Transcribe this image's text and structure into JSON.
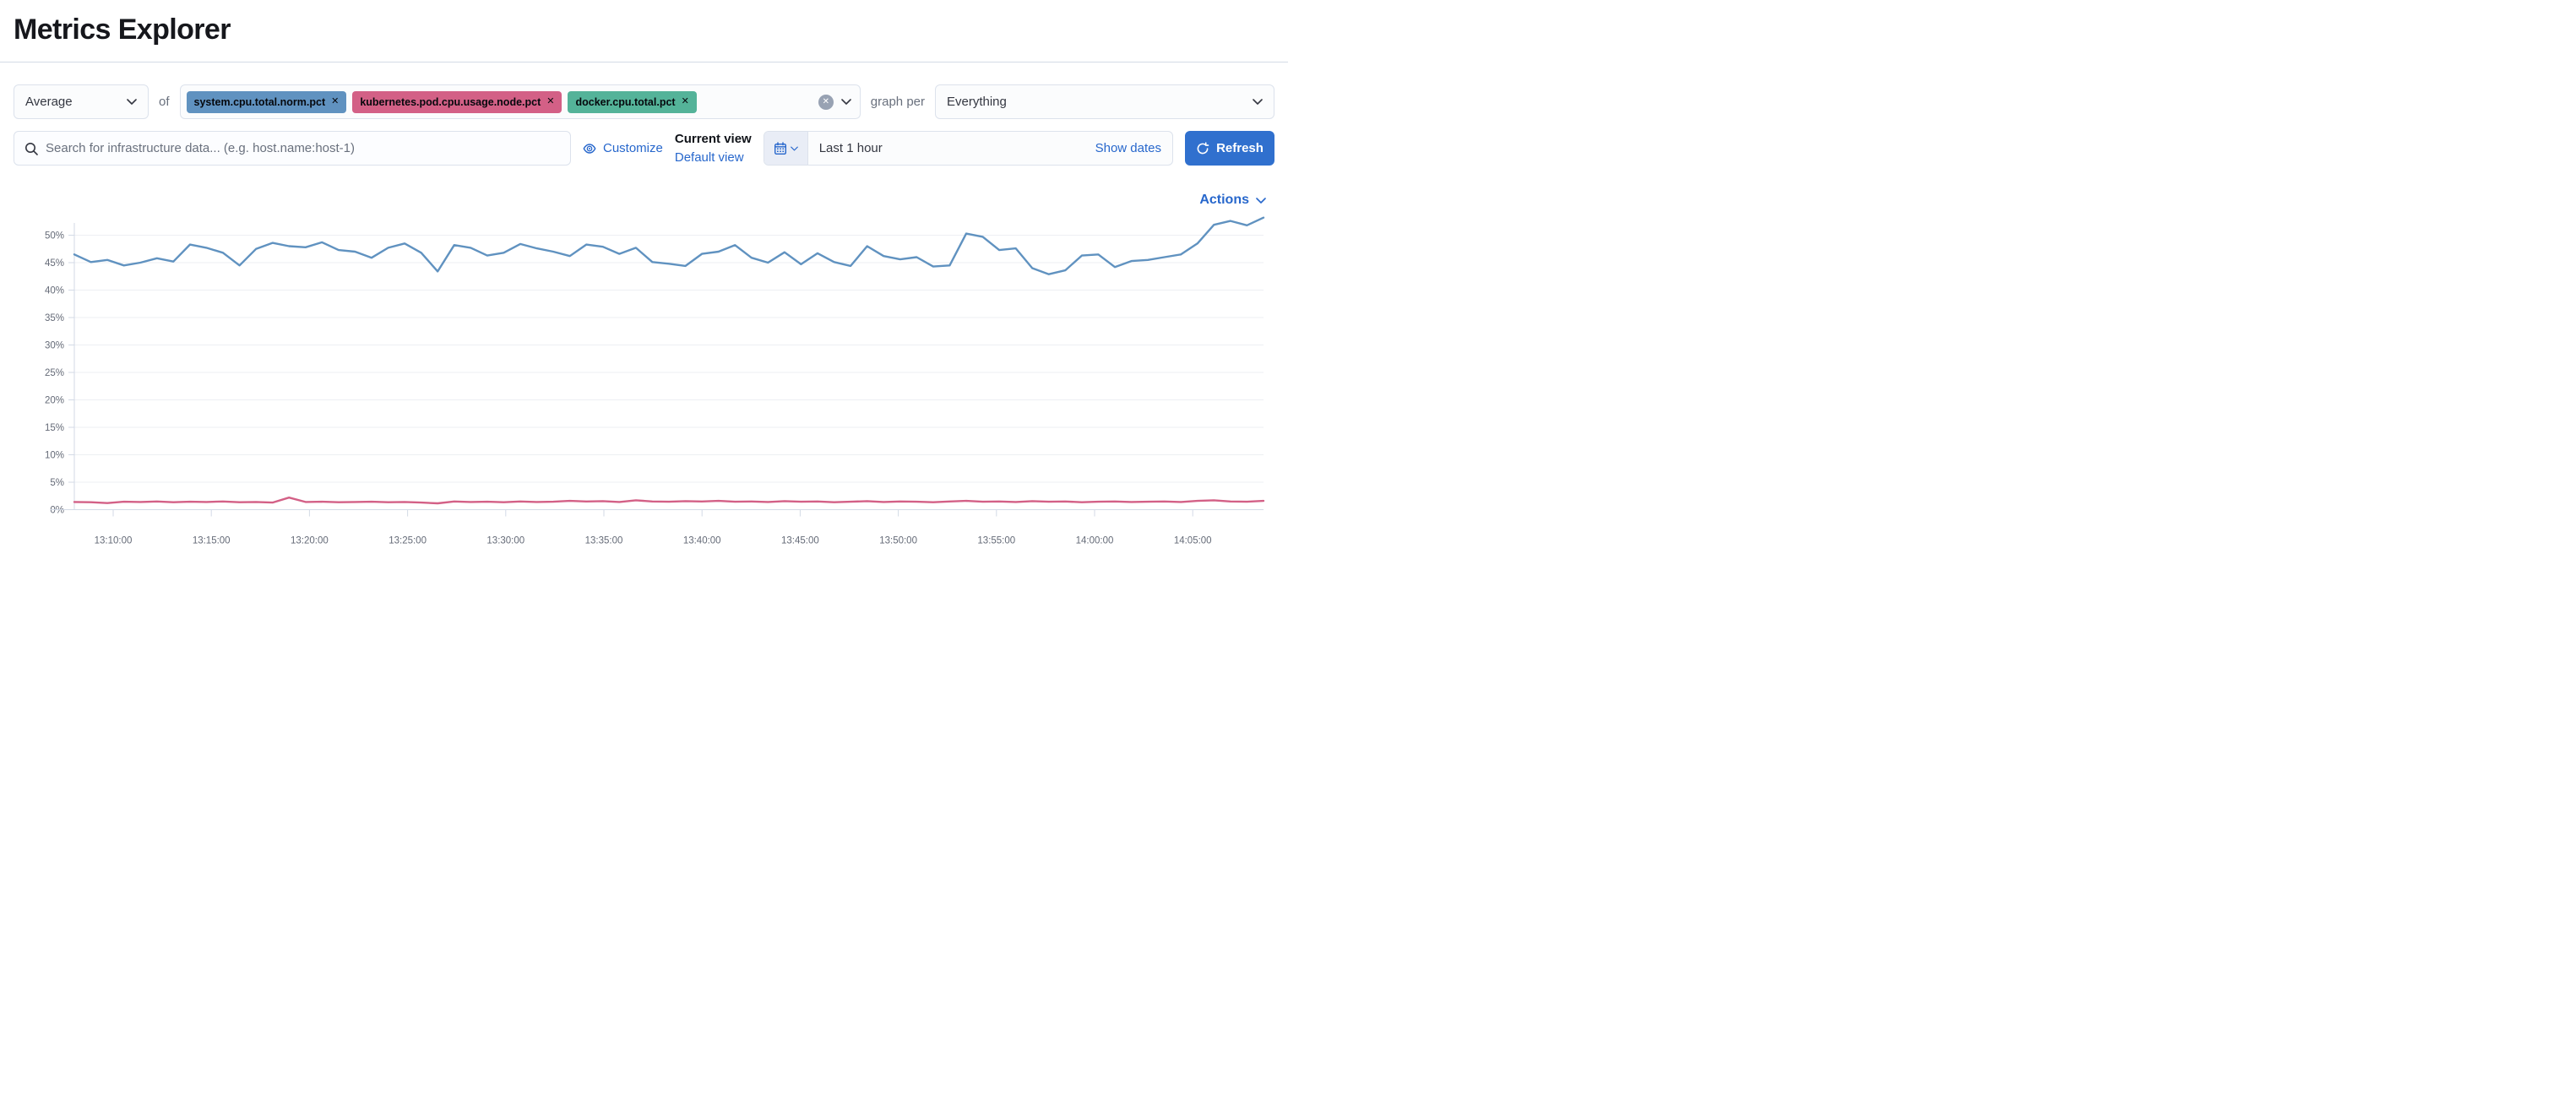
{
  "page": {
    "title": "Metrics Explorer"
  },
  "toolbar": {
    "aggregation": {
      "value": "Average"
    },
    "of_label": "of",
    "metrics": [
      {
        "label": "system.cpu.total.norm.pct",
        "color": "#6092C0",
        "remove_icon": "✕"
      },
      {
        "label": "kubernetes.pod.cpu.usage.node.pct",
        "color": "#D36086",
        "remove_icon": "✕"
      },
      {
        "label": "docker.cpu.total.pct",
        "color": "#54B399",
        "remove_icon": "✕"
      }
    ],
    "clear_icon": "✕",
    "graph_per_label": "graph per",
    "group_by": {
      "value": "Everything"
    }
  },
  "search": {
    "placeholder": "Search for infrastructure data... (e.g. host.name:host-1)"
  },
  "view_controls": {
    "customize_label": "Customize",
    "current_view_label": "Current view",
    "selected_view": "Default view"
  },
  "time_picker": {
    "range_label": "Last 1 hour",
    "show_dates_label": "Show dates",
    "refresh_label": "Refresh"
  },
  "actions": {
    "label": "Actions"
  },
  "chart_data": {
    "type": "line",
    "title": "",
    "xlabel": "",
    "ylabel": "",
    "ylim": [
      0,
      53.5
    ],
    "grid": true,
    "legend": "none",
    "y_tick_labels": [
      "0%",
      "5%",
      "10%",
      "15%",
      "20%",
      "25%",
      "30%",
      "35%",
      "40%",
      "45%",
      "50%"
    ],
    "x_tick_labels": [
      "13:10:00",
      "13:15:00",
      "13:20:00",
      "13:25:00",
      "13:30:00",
      "13:35:00",
      "13:40:00",
      "13:45:00",
      "13:50:00",
      "13:55:00",
      "14:00:00",
      "14:05:00"
    ],
    "x_range_note": "Last 1 hour, points approx. every 50s from ~13:08 to ~14:08",
    "series": [
      {
        "name": "system.cpu.total.norm.pct (Average)",
        "color": "#6092C0",
        "values": [
          46.5,
          45.1,
          45.5,
          44.5,
          45.0,
          45.8,
          45.2,
          48.3,
          47.7,
          46.8,
          44.5,
          47.5,
          48.6,
          48.0,
          47.8,
          48.7,
          47.3,
          47.0,
          45.9,
          47.7,
          48.5,
          46.8,
          43.4,
          48.2,
          47.7,
          46.3,
          46.8,
          48.4,
          47.6,
          47.0,
          46.2,
          48.3,
          47.9,
          46.6,
          47.7,
          45.1,
          44.8,
          44.4,
          46.6,
          47.0,
          48.2,
          45.9,
          45.0,
          46.9,
          44.7,
          46.7,
          45.1,
          44.4,
          48.0,
          46.2,
          45.6,
          46.0,
          44.3,
          44.5,
          50.3,
          49.7,
          47.3,
          47.6,
          44.0,
          42.9,
          43.6,
          46.3,
          46.5,
          44.2,
          45.3,
          45.5,
          46.0,
          46.5,
          48.5,
          51.9,
          52.6,
          51.8,
          53.2
        ]
      },
      {
        "name": "kubernetes.pod.cpu.usage.node.pct (Average)",
        "color": "#D36086",
        "values": [
          1.4,
          1.35,
          1.2,
          1.45,
          1.4,
          1.5,
          1.35,
          1.45,
          1.4,
          1.5,
          1.35,
          1.4,
          1.3,
          2.2,
          1.4,
          1.45,
          1.35,
          1.4,
          1.45,
          1.35,
          1.4,
          1.3,
          1.15,
          1.5,
          1.4,
          1.45,
          1.35,
          1.5,
          1.4,
          1.45,
          1.6,
          1.5,
          1.55,
          1.4,
          1.7,
          1.5,
          1.45,
          1.55,
          1.5,
          1.6,
          1.45,
          1.5,
          1.4,
          1.55,
          1.45,
          1.5,
          1.35,
          1.45,
          1.55,
          1.4,
          1.5,
          1.45,
          1.35,
          1.5,
          1.6,
          1.45,
          1.5,
          1.4,
          1.55,
          1.45,
          1.5,
          1.35,
          1.45,
          1.5,
          1.4,
          1.45,
          1.5,
          1.4,
          1.6,
          1.7,
          1.5,
          1.45,
          1.6
        ]
      }
    ]
  }
}
